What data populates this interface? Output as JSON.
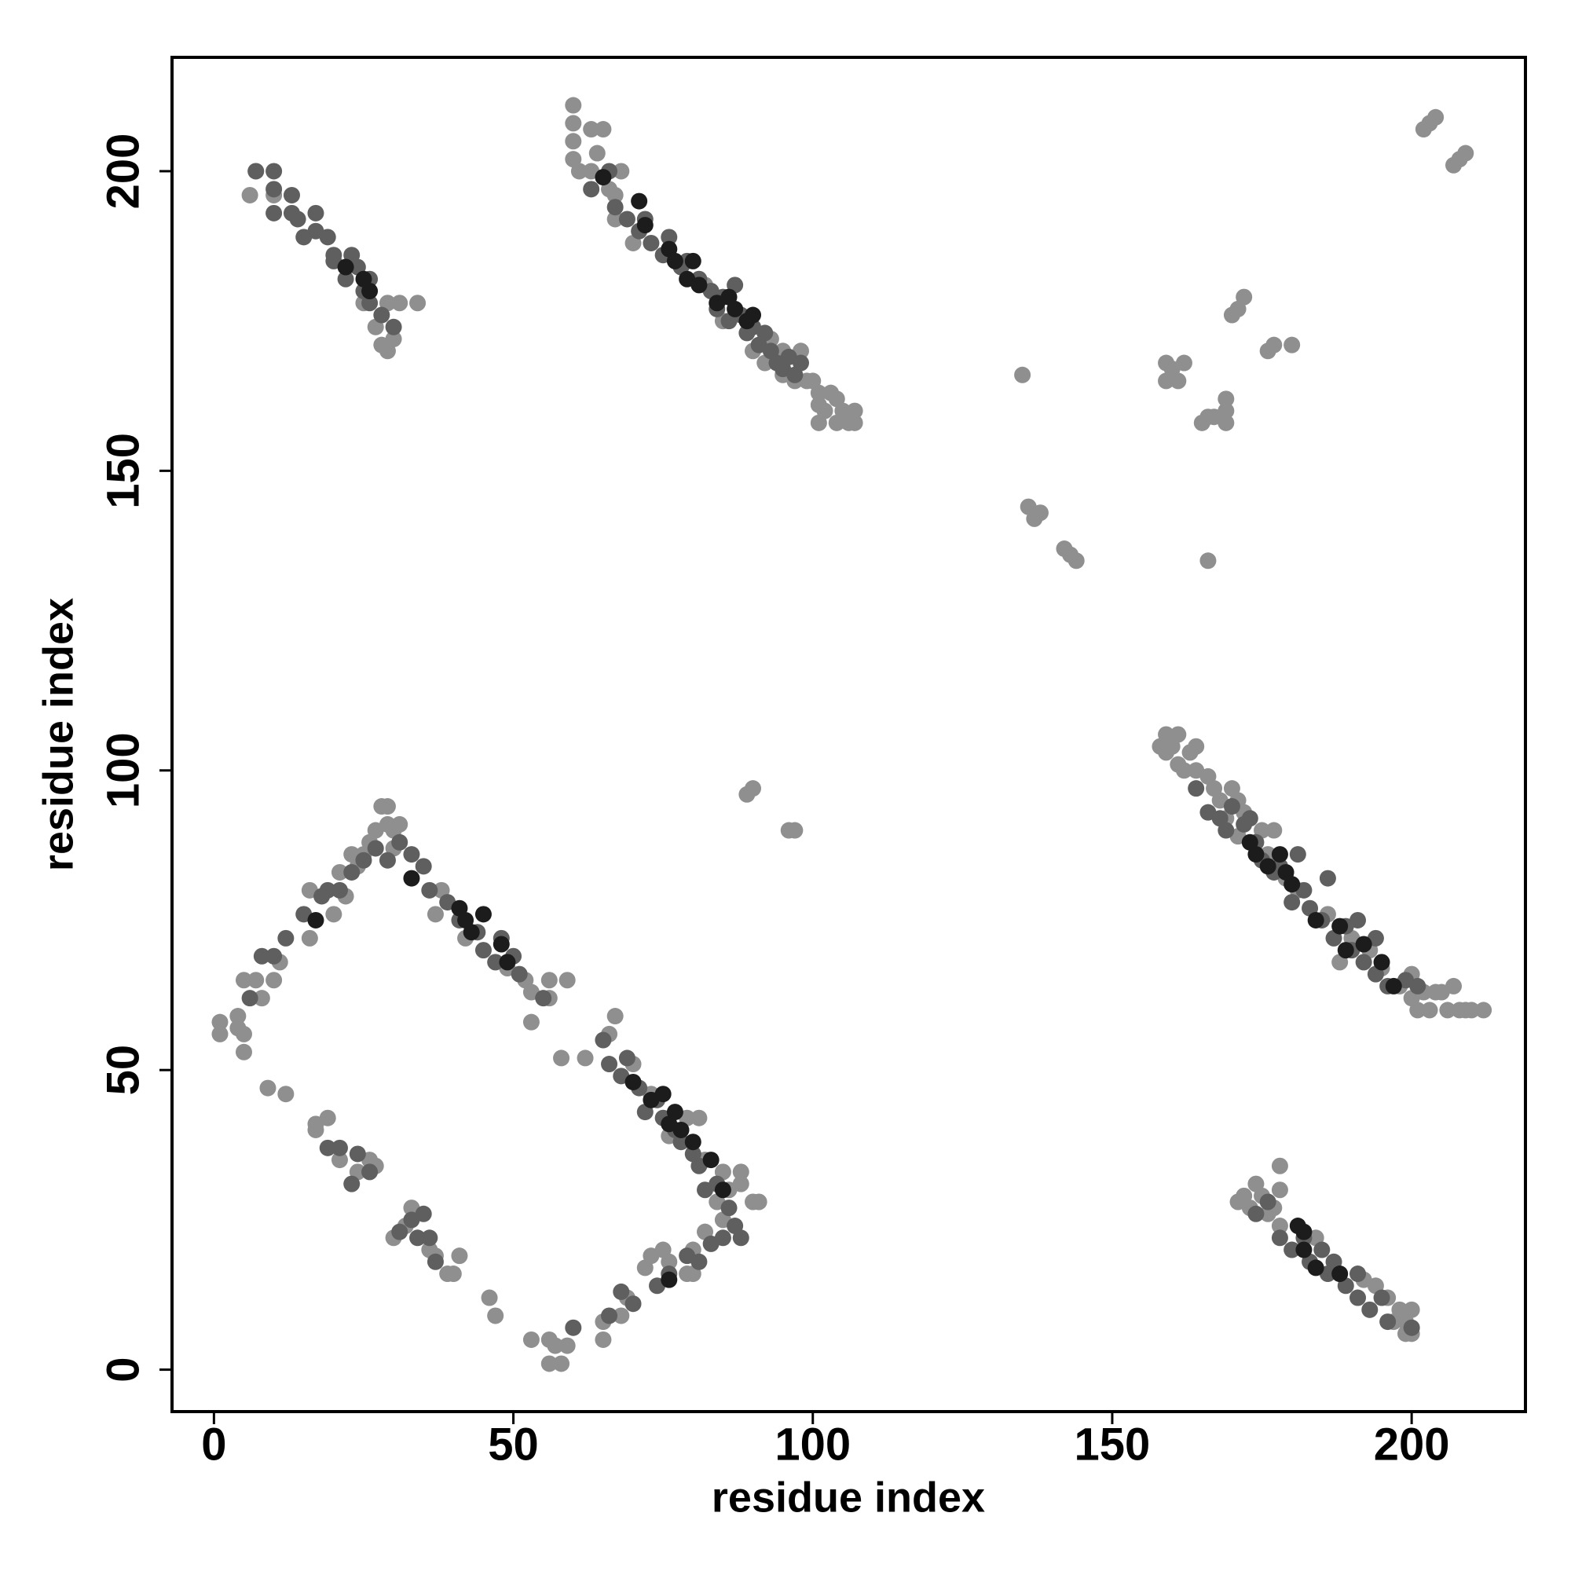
{
  "chart_data": {
    "type": "scatter",
    "xlabel": "residue index",
    "ylabel": "residue index",
    "xlim": [
      -7,
      219
    ],
    "ylim": [
      -7,
      219
    ],
    "xticks": [
      0,
      50,
      100,
      150,
      200
    ],
    "yticks": [
      0,
      50,
      100,
      150,
      200
    ],
    "series": [
      {
        "color": "#8f8f8f",
        "x": [
          6,
          10,
          7,
          28,
          29,
          30,
          34,
          31,
          25,
          29,
          27,
          60,
          60,
          60,
          60,
          61,
          63,
          64,
          65,
          63,
          67,
          68,
          66,
          67,
          70,
          93,
          95,
          98,
          95,
          97,
          100,
          101,
          102,
          103,
          104,
          105,
          106,
          107,
          107,
          104,
          101,
          101,
          99,
          92,
          90,
          85,
          84,
          82,
          202,
          203,
          204,
          207,
          208,
          209,
          135,
          136,
          137,
          138,
          142,
          143,
          144,
          166,
          159,
          159,
          160,
          161,
          162,
          165,
          166,
          167,
          169,
          169,
          169,
          170,
          171,
          172,
          176,
          177,
          180,
          158,
          159,
          159,
          160,
          161,
          161,
          162,
          163,
          164,
          164,
          166,
          167,
          168,
          170,
          171,
          169,
          171,
          172,
          175,
          177,
          176,
          179,
          181,
          186,
          188,
          190,
          193,
          195,
          198,
          200,
          201,
          202,
          203,
          205,
          206,
          207,
          208,
          209,
          210,
          212,
          200,
          204,
          171,
          172,
          173,
          174,
          175,
          176,
          177,
          178,
          178,
          178,
          184,
          188,
          192,
          194,
          196,
          197,
          198,
          199,
          200,
          200,
          199,
          89,
          90,
          96,
          97,
          1,
          1,
          4,
          4,
          5,
          5,
          5,
          7,
          10,
          8,
          11,
          16,
          16,
          20,
          21,
          22,
          23,
          24,
          25,
          26,
          27,
          28,
          29,
          29,
          30,
          31,
          30,
          37,
          38,
          42,
          49,
          52,
          53,
          53,
          56,
          56,
          59,
          58,
          62,
          9,
          12,
          17,
          17,
          19,
          21,
          24,
          26,
          27,
          30,
          32,
          33,
          36,
          37,
          39,
          40,
          41,
          46,
          47,
          53,
          56,
          56,
          57,
          58,
          59,
          65,
          65,
          68,
          69,
          72,
          73,
          75,
          76,
          79,
          80,
          80,
          82,
          84,
          85,
          86,
          88,
          90,
          91,
          88,
          66,
          67,
          70,
          73,
          76,
          79,
          81,
          82,
          85
        ],
        "values": [
          196,
          196,
          200,
          171,
          170,
          172,
          178,
          178,
          178,
          178,
          174,
          211,
          208,
          205,
          202,
          200,
          207,
          203,
          207,
          200,
          196,
          200,
          197,
          192,
          188,
          172,
          170,
          170,
          166,
          165,
          165,
          163,
          160,
          163,
          162,
          160,
          158,
          160,
          158,
          158,
          158,
          161,
          165,
          168,
          170,
          175,
          178,
          181,
          207,
          208,
          209,
          201,
          202,
          203,
          166,
          144,
          142,
          143,
          137,
          136,
          135,
          135,
          168,
          165,
          167,
          165,
          168,
          158,
          159,
          159,
          158,
          160,
          162,
          176,
          177,
          179,
          170,
          171,
          171,
          104,
          103,
          106,
          104,
          106,
          101,
          100,
          103,
          104,
          100,
          99,
          97,
          95,
          97,
          95,
          92,
          89,
          93,
          90,
          90,
          86,
          82,
          80,
          76,
          68,
          72,
          70,
          67,
          64,
          66,
          60,
          63,
          60,
          63,
          60,
          64,
          60,
          60,
          60,
          60,
          62,
          63,
          28,
          29,
          27,
          31,
          29,
          26,
          27,
          34,
          30,
          24,
          22,
          16,
          15,
          14,
          12,
          8,
          10,
          8,
          6,
          10,
          6,
          96,
          97,
          90,
          90,
          58,
          56,
          59,
          57,
          56,
          53,
          65,
          65,
          65,
          62,
          68,
          72,
          80,
          76,
          83,
          79,
          86,
          84,
          86,
          88,
          90,
          94,
          94,
          91,
          90,
          91,
          87,
          76,
          80,
          72,
          67,
          65,
          63,
          58,
          62,
          65,
          65,
          52,
          52,
          47,
          46,
          41,
          40,
          42,
          35,
          33,
          35,
          34,
          22,
          24,
          27,
          20,
          19,
          16,
          16,
          19,
          12,
          9,
          5,
          5,
          1,
          4,
          1,
          4,
          5,
          8,
          9,
          12,
          17,
          19,
          20,
          18,
          16,
          16,
          20,
          23,
          28,
          25,
          30,
          31,
          28,
          28,
          33,
          56,
          59,
          51,
          46,
          39,
          42,
          42,
          35,
          33
        ]
      },
      {
        "color": "#5f5f5f",
        "x": [
          7,
          10,
          10,
          10,
          13,
          13,
          14,
          15,
          17,
          17,
          19,
          20,
          20,
          22,
          23,
          24,
          25,
          26,
          28,
          30,
          26,
          63,
          66,
          67,
          69,
          71,
          72,
          73,
          75,
          76,
          78,
          79,
          81,
          83,
          84,
          85,
          86,
          87,
          88,
          89,
          90,
          91,
          92,
          93,
          94,
          95,
          96,
          97,
          98,
          164,
          166,
          168,
          169,
          170,
          172,
          173,
          174,
          175,
          177,
          178,
          180,
          181,
          182,
          183,
          185,
          186,
          187,
          189,
          190,
          191,
          192,
          194,
          194,
          196,
          199,
          201,
          174,
          176,
          178,
          180,
          182,
          183,
          185,
          186,
          187,
          189,
          191,
          191,
          193,
          195,
          196,
          200,
          12,
          15,
          19,
          21,
          23,
          25,
          27,
          29,
          31,
          33,
          35,
          36,
          39,
          41,
          44,
          45,
          47,
          48,
          50,
          51,
          55,
          65,
          66,
          68,
          69,
          71,
          72,
          74,
          75,
          77,
          78,
          80,
          81,
          82,
          84,
          86,
          87,
          88,
          85,
          83,
          81,
          79,
          76,
          74,
          70,
          68,
          66,
          60,
          19,
          21,
          23,
          24,
          26,
          31,
          33,
          34,
          35,
          36,
          37,
          6,
          8,
          10,
          18
        ],
        "values": [
          200,
          200,
          197,
          193,
          196,
          193,
          192,
          189,
          193,
          190,
          189,
          186,
          185,
          182,
          186,
          184,
          180,
          178,
          176,
          174,
          182,
          197,
          200,
          194,
          192,
          190,
          192,
          188,
          186,
          189,
          184,
          185,
          182,
          180,
          177,
          179,
          175,
          181,
          176,
          173,
          174,
          171,
          173,
          170,
          168,
          167,
          169,
          166,
          168,
          97,
          93,
          92,
          90,
          94,
          91,
          92,
          88,
          85,
          83,
          84,
          78,
          86,
          80,
          77,
          75,
          82,
          72,
          74,
          70,
          75,
          68,
          72,
          66,
          64,
          65,
          64,
          26,
          28,
          22,
          20,
          22,
          18,
          20,
          16,
          18,
          14,
          12,
          16,
          10,
          12,
          8,
          7,
          72,
          76,
          80,
          80,
          83,
          85,
          87,
          85,
          88,
          86,
          84,
          80,
          78,
          75,
          73,
          70,
          68,
          72,
          69,
          66,
          62,
          55,
          51,
          49,
          52,
          47,
          43,
          45,
          42,
          40,
          38,
          36,
          34,
          30,
          31,
          27,
          24,
          22,
          22,
          21,
          18,
          19,
          16,
          14,
          11,
          13,
          9,
          7,
          37,
          37,
          31,
          36,
          33,
          23,
          25,
          22,
          26,
          22,
          18,
          62,
          69,
          69,
          79
        ]
      },
      {
        "color": "#1c1c1c",
        "x": [
          65,
          71,
          72,
          76,
          77,
          79,
          80,
          81,
          84,
          86,
          87,
          89,
          90,
          22,
          25,
          26,
          173,
          174,
          176,
          178,
          179,
          180,
          184,
          188,
          189,
          192,
          195,
          197,
          181,
          182,
          182,
          184,
          188,
          17,
          33,
          41,
          42,
          43,
          45,
          48,
          49,
          70,
          73,
          75,
          76,
          78,
          77,
          80,
          83,
          85,
          76
        ],
        "values": [
          199,
          195,
          191,
          187,
          185,
          182,
          185,
          181,
          178,
          179,
          177,
          175,
          176,
          184,
          182,
          180,
          88,
          86,
          84,
          86,
          83,
          81,
          75,
          74,
          70,
          71,
          68,
          64,
          24,
          23,
          20,
          17,
          16,
          75,
          82,
          77,
          75,
          73,
          76,
          71,
          68,
          48,
          45,
          46,
          41,
          40,
          43,
          38,
          35,
          30,
          15
        ]
      }
    ]
  }
}
